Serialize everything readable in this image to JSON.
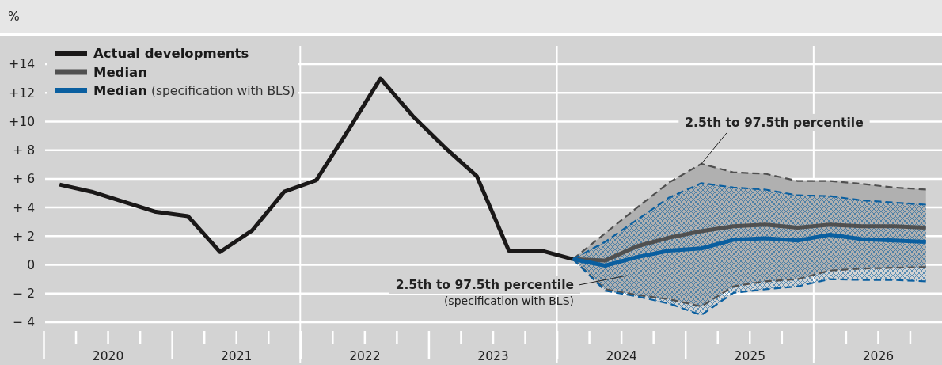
{
  "chart_data": {
    "type": "line",
    "ylabel": "%",
    "xlim": [
      2020,
      2027
    ],
    "xticks": [
      {
        "value": 2020,
        "label": null
      },
      {
        "value": 2020.25,
        "label": null
      },
      {
        "value": 2020.5,
        "label": "2020"
      },
      {
        "value": 2020.75,
        "label": null
      },
      {
        "value": 2021,
        "label": null
      },
      {
        "value": 2021.25,
        "label": null
      },
      {
        "value": 2021.5,
        "label": "2021"
      },
      {
        "value": 2021.75,
        "label": null
      },
      {
        "value": 2022,
        "label": null
      },
      {
        "value": 2022.25,
        "label": null
      },
      {
        "value": 2022.5,
        "label": "2022"
      },
      {
        "value": 2022.75,
        "label": null
      },
      {
        "value": 2023,
        "label": null
      },
      {
        "value": 2023.25,
        "label": null
      },
      {
        "value": 2023.5,
        "label": "2023"
      },
      {
        "value": 2023.75,
        "label": null
      },
      {
        "value": 2024,
        "label": null
      },
      {
        "value": 2024.25,
        "label": null
      },
      {
        "value": 2024.5,
        "label": "2024"
      },
      {
        "value": 2024.75,
        "label": null
      },
      {
        "value": 2025,
        "label": null
      },
      {
        "value": 2025.25,
        "label": null
      },
      {
        "value": 2025.5,
        "label": "2025"
      },
      {
        "value": 2025.75,
        "label": null
      },
      {
        "value": 2026,
        "label": null
      },
      {
        "value": 2026.25,
        "label": null
      },
      {
        "value": 2026.5,
        "label": "2026"
      },
      {
        "value": 2026.75,
        "label": null
      }
    ],
    "ylim": [
      -4,
      14
    ],
    "yticks": [
      {
        "value": -4,
        "label": "− 4"
      },
      {
        "value": -2,
        "label": "− 2"
      },
      0,
      {
        "value": 2,
        "label": "+ 2"
      },
      {
        "value": 4,
        "label": "+ 4"
      },
      {
        "value": 6,
        "label": "+ 6"
      },
      {
        "value": 8,
        "label": "+ 8"
      },
      {
        "value": 10,
        "label": "+10"
      },
      {
        "value": 12,
        "label": "+12"
      },
      {
        "value": 14,
        "label": "+14"
      }
    ],
    "grid": "y",
    "legend": "top left",
    "ref_lines": [
      {
        "axis": "x",
        "value": 2022,
        "color": "#ffffff"
      },
      {
        "axis": "x",
        "value": 2024,
        "color": "#ffffff"
      },
      {
        "axis": "x",
        "value": 2026,
        "color": "#ffffff"
      }
    ],
    "series": [
      {
        "name": "Actual developments",
        "color": "#1a1818",
        "x": [
          2020.125,
          2020.375,
          2020.625,
          2020.875,
          2021.125,
          2021.375,
          2021.625,
          2021.875,
          2022.125,
          2022.375,
          2022.625,
          2022.875,
          2023.125,
          2023.375,
          2023.625,
          2023.875,
          2024.125
        ],
        "values": [
          5.6,
          5.1,
          4.4,
          3.7,
          3.4,
          0.9,
          2.4,
          5.1,
          5.9,
          9.4,
          13.0,
          10.4,
          8.2,
          6.2,
          1.0,
          1.0,
          0.4
        ]
      },
      {
        "name": "Median",
        "color": "#505050",
        "x": [
          2024.125,
          2024.375,
          2024.625,
          2024.875,
          2025.125,
          2025.375,
          2025.625,
          2025.875,
          2026.125,
          2026.375,
          2026.625,
          2026.875
        ],
        "values": [
          0.4,
          0.3,
          1.3,
          1.9,
          2.35,
          2.7,
          2.8,
          2.6,
          2.8,
          2.7,
          2.7,
          2.6
        ],
        "lower": [
          0.4,
          -1.7,
          -2.1,
          -2.4,
          -2.9,
          -1.5,
          -1.15,
          -1.0,
          -0.4,
          -0.25,
          -0.2,
          -0.15
        ],
        "upper": [
          0.4,
          2.2,
          4.0,
          5.75,
          7.05,
          6.45,
          6.35,
          5.85,
          5.85,
          5.65,
          5.4,
          5.25
        ]
      },
      {
        "name": "Median (specification with BLS)",
        "color": "#0a5fa0",
        "x": [
          2024.125,
          2024.375,
          2024.625,
          2024.875,
          2025.125,
          2025.375,
          2025.625,
          2025.875,
          2026.125,
          2026.375,
          2026.625,
          2026.875
        ],
        "values": [
          0.4,
          -0.05,
          0.55,
          1.0,
          1.15,
          1.75,
          1.85,
          1.7,
          2.1,
          1.8,
          1.7,
          1.6
        ],
        "lower": [
          0.4,
          -1.8,
          -2.2,
          -2.7,
          -3.5,
          -1.95,
          -1.7,
          -1.5,
          -1.0,
          -1.05,
          -1.05,
          -1.15
        ],
        "upper": [
          0.4,
          1.6,
          3.15,
          4.7,
          5.7,
          5.4,
          5.25,
          4.85,
          4.8,
          4.5,
          4.35,
          4.2
        ]
      },
      {
        "color": "#505050",
        "line_style": "dashed",
        "x": [
          2024.125,
          2024.375,
          2024.625,
          2024.875,
          2025.125,
          2025.375,
          2025.625,
          2025.875,
          2026.125,
          2026.375,
          2026.625,
          2026.875
        ],
        "values": [
          0.4,
          -1.7,
          -2.1,
          -2.4,
          -2.9,
          -1.5,
          -1.15,
          -1.0,
          -0.4,
          -0.25,
          -0.2,
          -0.15
        ]
      },
      {
        "color": "#505050",
        "line_style": "dashed",
        "x": [
          2024.125,
          2024.375,
          2024.625,
          2024.875,
          2025.125,
          2025.375,
          2025.625,
          2025.875,
          2026.125,
          2026.375,
          2026.625,
          2026.875
        ],
        "values": [
          0.4,
          2.2,
          4.0,
          5.75,
          7.05,
          6.45,
          6.35,
          5.85,
          5.85,
          5.65,
          5.4,
          5.25
        ]
      },
      {
        "color": "#0a5fa0",
        "line_style": "dashed",
        "x": [
          2024.125,
          2024.375,
          2024.625,
          2024.875,
          2025.125,
          2025.375,
          2025.625,
          2025.875,
          2026.125,
          2026.375,
          2026.625,
          2026.875
        ],
        "values": [
          0.4,
          -1.8,
          -2.2,
          -2.7,
          -3.5,
          -1.95,
          -1.7,
          -1.5,
          -1.0,
          -1.05,
          -1.05,
          -1.15
        ]
      },
      {
        "color": "#0a5fa0",
        "line_style": "dashed",
        "x": [
          2024.125,
          2024.375,
          2024.625,
          2024.875,
          2025.125,
          2025.375,
          2025.625,
          2025.875,
          2026.125,
          2026.375,
          2026.625,
          2026.875
        ],
        "values": [
          0.4,
          1.6,
          3.15,
          4.7,
          5.7,
          5.4,
          5.25,
          4.85,
          4.8,
          4.5,
          4.35,
          4.2
        ]
      }
    ],
    "annotations": [
      {
        "text": "2.5th to 97.5th percentile",
        "x": 2025.125,
        "y": 7.05
      },
      "2.5th to 97.5th percentile\n(specification with BLS)"
    ]
  }
}
